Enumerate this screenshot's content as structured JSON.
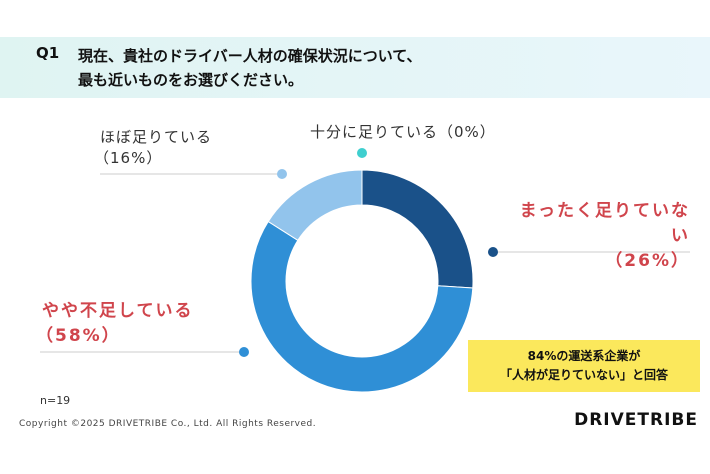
{
  "question": {
    "number": "Q1",
    "text_line1": "現在、貴社のドライバー人材の確保状況について、",
    "text_line2": "最も近いものをお選びください。"
  },
  "chart_data": {
    "type": "pie",
    "donut": true,
    "title": "現在、貴社のドライバー人材の確保状況について、最も近いものをお選びください。",
    "slices": [
      {
        "label": "まったく足りていない",
        "value": 26,
        "pct_label": "（26%）",
        "color": "#1a5189"
      },
      {
        "label": "やや不足している",
        "value": 58,
        "pct_label": "（58%）",
        "color": "#2f8fd6"
      },
      {
        "label": "ほぼ足りている",
        "value": 16,
        "pct_label": "（16%）",
        "color": "#92c4ec"
      },
      {
        "label": "十分に足りている",
        "value": 0,
        "pct_label": "（0%）",
        "color": "#3fcfcf"
      }
    ]
  },
  "callout": {
    "line1": "84%の運送系企業が",
    "line2": "「人材が足りていない」と回答"
  },
  "sample": "n=19",
  "copyright": "Copyright ©2025 DRIVETRIBE Co., Ltd. All Rights Reserved.",
  "logo": "DRIVETRIBE"
}
